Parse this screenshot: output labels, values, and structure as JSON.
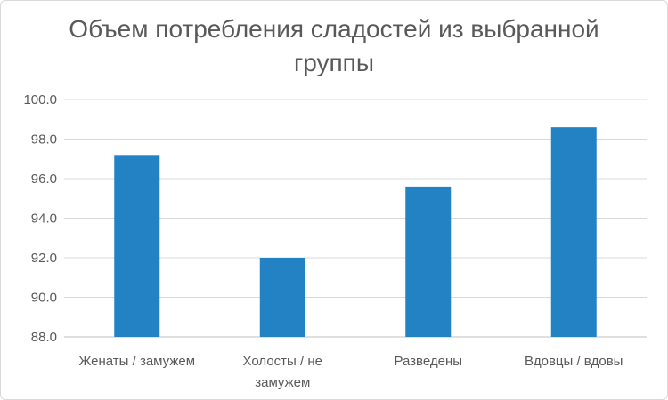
{
  "chart_data": {
    "type": "bar",
    "title": "Объем потребления сладостей из выбранной группы",
    "categories": [
      "Женаты / замужем",
      "Холосты / не замужем",
      "Разведены",
      "Вдовцы / вдовы"
    ],
    "category_lines": [
      [
        "Женаты / замужем"
      ],
      [
        "Холосты / не",
        "замужем"
      ],
      [
        "Разведены"
      ],
      [
        "Вдовцы / вдовы"
      ]
    ],
    "values": [
      97.2,
      92.0,
      95.6,
      98.6
    ],
    "ylim": [
      88.0,
      100.0
    ],
    "yticks": [
      "88.0",
      "90.0",
      "92.0",
      "94.0",
      "96.0",
      "98.0",
      "100.0"
    ],
    "xlabel": "",
    "ylabel": "",
    "grid": true,
    "bar_color": "#2282c3",
    "grid_color": "#d9d9d9",
    "axis_color": "#bfbfbf"
  }
}
